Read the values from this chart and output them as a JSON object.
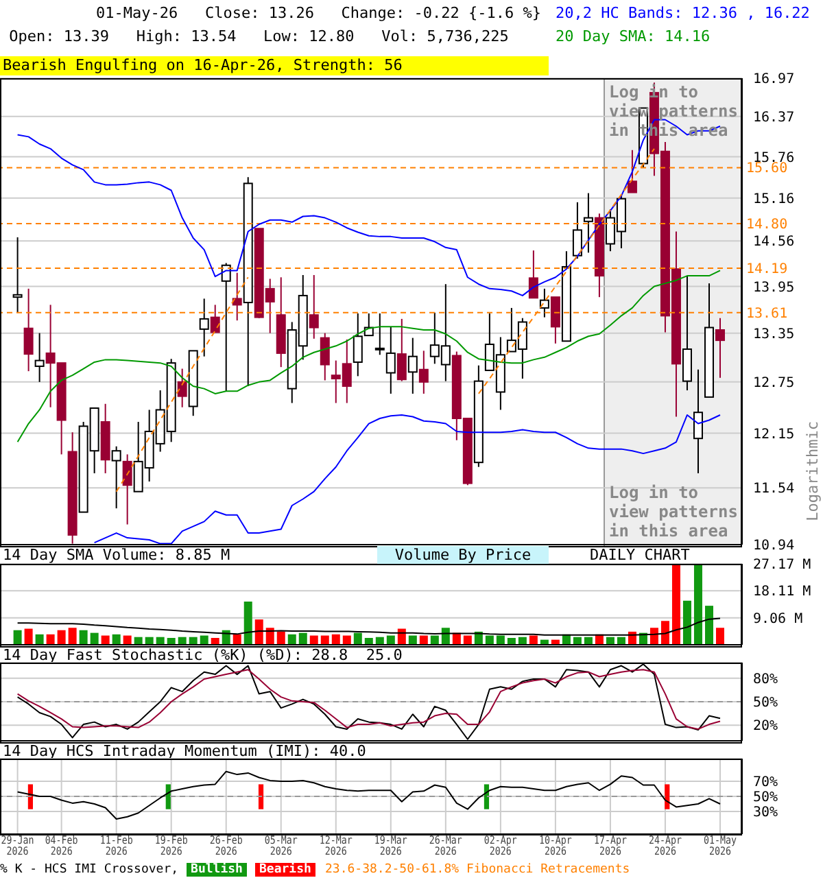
{
  "chart_data": [
    {
      "type": "candlestick",
      "title": "01-May-26   Close: 13.26   Change: -0.22 {-1.6 %}",
      "subtitle": " Open: 13.39   High: 13.54   Low: 12.80   Vol: 5,736,225",
      "ylabel": "Logarithmic",
      "log": true,
      "grid": true,
      "tick_labels": "y",
      "legend": "top right",
      "categories": [
        null,
        null,
        null,
        null,
        null,
        null,
        null,
        null,
        null,
        null,
        null,
        null,
        null,
        null,
        null,
        null,
        null,
        null,
        null,
        null,
        null,
        null,
        null,
        null,
        null,
        null,
        null,
        null,
        null,
        null,
        null,
        null,
        null,
        null,
        null,
        null,
        null,
        null,
        null,
        null,
        null,
        null,
        null,
        null,
        null,
        null,
        null,
        null,
        null,
        null,
        null,
        null,
        null,
        null,
        null,
        null,
        null,
        null,
        null,
        null,
        null,
        null,
        null,
        null,
        null
      ],
      "ohlc": [
        [
          13.81,
          14.61,
          13.61,
          13.84
        ],
        [
          13.41,
          13.92,
          12.88,
          13.09
        ],
        [
          12.94,
          13.35,
          12.75,
          13.01
        ],
        [
          13.1,
          13.71,
          12.45,
          12.98
        ],
        [
          12.98,
          12.98,
          11.91,
          12.3
        ],
        [
          11.94,
          12.16,
          10.95,
          11.04
        ],
        [
          11.28,
          12.28,
          11.28,
          12.23
        ],
        [
          11.95,
          12.44,
          11.7,
          12.44
        ],
        [
          12.28,
          12.49,
          11.7,
          11.85
        ],
        [
          11.84,
          12.0,
          11.32,
          11.95
        ],
        [
          11.83,
          11.91,
          11.15,
          11.57
        ],
        [
          11.5,
          12.28,
          11.5,
          11.83
        ],
        [
          11.76,
          12.42,
          11.61,
          12.17
        ],
        [
          12.03,
          12.65,
          11.94,
          12.42
        ],
        [
          12.17,
          13.03,
          12.05,
          12.98
        ],
        [
          12.75,
          12.91,
          12.45,
          12.58
        ],
        [
          12.46,
          13.13,
          12.35,
          13.13
        ],
        [
          13.4,
          13.79,
          13.06,
          13.53
        ],
        [
          13.55,
          13.71,
          13.36,
          13.36
        ],
        [
          14.02,
          14.26,
          12.64,
          14.23
        ],
        [
          13.79,
          14.13,
          13.51,
          13.71
        ],
        [
          13.74,
          15.46,
          12.7,
          15.37
        ],
        [
          14.73,
          14.73,
          13.54,
          13.55
        ],
        [
          13.92,
          14.05,
          13.35,
          13.75
        ],
        [
          13.58,
          14.07,
          12.93,
          13.1
        ],
        [
          12.67,
          13.49,
          12.5,
          13.39
        ],
        [
          13.19,
          14.1,
          13.02,
          13.83
        ],
        [
          13.58,
          14.1,
          13.28,
          13.42
        ],
        [
          13.29,
          13.35,
          12.77,
          12.96
        ],
        [
          12.83,
          13.01,
          12.5,
          12.79
        ],
        [
          12.97,
          13.27,
          12.5,
          12.7
        ],
        [
          12.99,
          13.6,
          12.82,
          13.31
        ],
        [
          13.32,
          13.6,
          13.32,
          13.42
        ],
        [
          13.15,
          13.6,
          13.08,
          13.16
        ],
        [
          12.86,
          13.43,
          12.61,
          13.1
        ],
        [
          13.09,
          13.53,
          12.76,
          12.78
        ],
        [
          12.87,
          13.29,
          12.61,
          13.06
        ],
        [
          12.9,
          13.13,
          12.61,
          12.75
        ],
        [
          13.06,
          13.61,
          12.97,
          13.2
        ],
        [
          12.96,
          13.98,
          12.76,
          13.19
        ],
        [
          13.07,
          13.12,
          12.07,
          12.32
        ],
        [
          12.32,
          12.32,
          11.57,
          11.59
        ],
        [
          11.82,
          12.95,
          11.77,
          12.76
        ],
        [
          12.89,
          13.6,
          12.89,
          13.21
        ],
        [
          12.63,
          13.3,
          12.42,
          13.08
        ],
        [
          13.12,
          13.67,
          13.12,
          13.26
        ],
        [
          13.15,
          13.54,
          12.79,
          13.49
        ],
        [
          14.06,
          14.43,
          13.8,
          13.8
        ],
        [
          13.67,
          13.92,
          13.55,
          13.77
        ],
        [
          13.81,
          13.81,
          13.22,
          13.43
        ],
        [
          13.25,
          14.42,
          13.25,
          14.21
        ],
        [
          14.36,
          15.1,
          14.32,
          14.71
        ],
        [
          14.83,
          15.23,
          14.4,
          14.88
        ],
        [
          14.88,
          14.94,
          13.81,
          14.09
        ],
        [
          14.52,
          15.0,
          14.42,
          14.88
        ],
        [
          14.69,
          15.19,
          14.46,
          15.15
        ],
        [
          15.4,
          15.86,
          15.24,
          15.24
        ],
        [
          15.66,
          16.5,
          15.6,
          16.5
        ],
        [
          16.74,
          16.9,
          15.48,
          15.81
        ],
        [
          15.84,
          15.98,
          13.36,
          13.57
        ],
        [
          14.18,
          14.69,
          12.34,
          12.97
        ],
        [
          12.76,
          14.09,
          12.65,
          13.15
        ],
        [
          12.09,
          12.9,
          11.7,
          12.39
        ],
        [
          12.57,
          13.99,
          12.57,
          13.42
        ],
        [
          13.39,
          13.54,
          12.8,
          13.26
        ]
      ],
      "colors": [
        "#ffffff",
        "#990033",
        "#ffffff",
        "#990033",
        "#990033",
        "#990033",
        "#ffffff",
        "#ffffff",
        "#990033",
        "#ffffff",
        "#990033",
        "#ffffff",
        "#ffffff",
        "#ffffff",
        "#ffffff",
        "#990033",
        "#ffffff",
        "#ffffff",
        "#990033",
        "#ffffff",
        "#990033",
        "#ffffff",
        "#990033",
        "#990033",
        "#990033",
        "#ffffff",
        "#ffffff",
        "#990033",
        "#990033",
        "#990033",
        "#990033",
        "#ffffff",
        "#ffffff",
        "#ffffff",
        "#ffffff",
        "#990033",
        "#ffffff",
        "#990033",
        "#ffffff",
        "#ffffff",
        "#990033",
        "#990033",
        "#ffffff",
        "#ffffff",
        "#ffffff",
        "#ffffff",
        "#ffffff",
        "#990033",
        "#ffffff",
        "#990033",
        "#ffffff",
        "#ffffff",
        "#ffffff",
        "#990033",
        "#ffffff",
        "#ffffff",
        "#990033",
        "#ffffff",
        "#990033",
        "#990033",
        "#990033",
        "#ffffff",
        "#ffffff",
        "#ffffff",
        "#990033"
      ],
      "series": [
        {
          "type": "line",
          "name": "20,2 HC Bands: 12.36 , 16.22",
          "color": "#0000ff",
          "values": [
            16.09,
            16.06,
            15.95,
            15.88,
            15.74,
            15.64,
            15.57,
            15.39,
            15.35,
            15.35,
            15.36,
            15.38,
            15.39,
            15.35,
            15.27,
            14.88,
            14.6,
            14.44,
            14.08,
            14.16,
            14.16,
            14.69,
            14.79,
            14.85,
            14.85,
            14.82,
            14.9,
            14.91,
            14.88,
            14.82,
            14.74,
            14.68,
            14.63,
            14.62,
            14.62,
            14.6,
            14.6,
            14.6,
            14.55,
            14.47,
            14.44,
            14.07,
            13.98,
            13.92,
            13.91,
            13.89,
            13.83,
            13.94,
            14.01,
            14.07,
            14.18,
            14.35,
            14.57,
            14.79,
            14.98,
            15.19,
            15.54,
            16.01,
            16.32,
            16.32,
            16.22,
            16.09,
            16.15,
            16.15,
            16.22
          ]
        },
        {
          "type": "line",
          "color": "#0000ff",
          "values": [
            null,
            null,
            null,
            null,
            null,
            null,
            null,
            10.96,
            11.01,
            11.06,
            11.01,
            11.0,
            10.99,
            10.95,
            10.95,
            11.08,
            11.13,
            11.18,
            11.29,
            11.25,
            11.25,
            11.06,
            11.06,
            11.08,
            11.1,
            11.35,
            11.42,
            11.5,
            11.64,
            11.77,
            11.95,
            12.1,
            12.26,
            12.32,
            12.35,
            12.36,
            12.34,
            12.29,
            12.28,
            12.26,
            12.17,
            12.16,
            12.16,
            12.16,
            12.16,
            12.17,
            12.19,
            12.17,
            12.16,
            12.16,
            12.1,
            12.03,
            11.98,
            11.97,
            11.97,
            11.97,
            11.95,
            11.92,
            11.95,
            11.98,
            12.05,
            12.36,
            12.26,
            12.3,
            12.36
          ]
        },
        {
          "type": "line",
          "name": "20 Day SMA: 14.16",
          "color": "#009900",
          "values": [
            12.05,
            12.26,
            12.42,
            12.64,
            12.77,
            12.83,
            12.91,
            12.99,
            13.02,
            13.02,
            13.01,
            13.0,
            12.99,
            12.98,
            12.94,
            12.8,
            12.7,
            12.67,
            12.61,
            12.64,
            12.64,
            12.71,
            12.75,
            12.77,
            12.86,
            12.94,
            13.05,
            13.11,
            13.15,
            13.19,
            13.25,
            13.34,
            13.41,
            13.43,
            13.43,
            13.43,
            13.41,
            13.39,
            13.39,
            13.34,
            13.25,
            13.11,
            13.03,
            13.01,
            12.99,
            12.98,
            12.98,
            13.02,
            13.05,
            13.11,
            13.17,
            13.25,
            13.31,
            13.34,
            13.45,
            13.57,
            13.67,
            13.83,
            13.95,
            13.99,
            14.03,
            14.09,
            14.09,
            14.09,
            14.16
          ]
        },
        {
          "type": "line",
          "color": "#ff8000",
          "line_style": "dashed",
          "values": [
            null,
            null,
            null,
            null,
            null,
            null,
            null,
            null,
            null,
            11.5,
            11.69,
            11.89,
            12.1,
            12.3,
            12.51,
            12.72,
            12.94,
            13.16,
            13.38,
            13.61,
            13.84,
            14.07,
            null,
            null,
            null,
            null,
            null,
            null,
            null,
            null,
            null,
            null,
            null,
            null,
            null,
            null,
            null,
            null,
            null,
            null,
            null,
            null,
            null,
            null,
            null,
            null,
            null,
            null,
            null,
            null,
            null,
            null,
            null,
            null,
            null,
            null,
            null,
            null,
            null,
            null,
            null,
            null,
            null,
            null,
            null
          ]
        },
        {
          "type": "line",
          "color": "#ff8000",
          "line_style": "dashed",
          "values": [
            null,
            null,
            null,
            null,
            null,
            null,
            null,
            null,
            null,
            null,
            null,
            null,
            null,
            null,
            null,
            null,
            null,
            null,
            null,
            null,
            null,
            null,
            null,
            null,
            null,
            null,
            null,
            null,
            null,
            null,
            null,
            null,
            null,
            null,
            null,
            null,
            null,
            null,
            null,
            null,
            null,
            null,
            12.61,
            12.79,
            12.98,
            13.17,
            13.36,
            13.55,
            13.75,
            13.95,
            14.15,
            14.36,
            14.56,
            14.78,
            14.99,
            15.21,
            15.43,
            15.65,
            15.88,
            null,
            null,
            null,
            null,
            null,
            null
          ]
        }
      ],
      "ylim": [
        10.94,
        16.97
      ],
      "yticks": [
        10.94,
        11.54,
        12.15,
        12.75,
        13.35,
        13.95,
        14.56,
        15.16,
        15.76,
        16.37,
        16.97
      ],
      "ref_lines": [
        {
          "axis": "y",
          "value": 15.6,
          "label": "15.60",
          "color": "#ff8000",
          "line_style": "dashed"
        },
        {
          "axis": "y",
          "value": 14.8,
          "label": "14.80",
          "color": "#ff8000",
          "line_style": "dashed"
        },
        {
          "axis": "y",
          "value": 14.19,
          "label": "14.19",
          "color": "#ff8000",
          "line_style": "dashed"
        },
        {
          "axis": "y",
          "value": 13.61,
          "label": "13.61",
          "color": "#ff8000",
          "line_style": "dashed"
        }
      ],
      "annotations": [
        "Bearish Engulfing on 16-Apr-26, Strength: 56",
        "Log in to view patterns in this area",
        "Log in to view patterns in this area",
        "23.6-38.2-50-61.8% Fibonacci Retracements"
      ]
    },
    {
      "type": "bar",
      "title": "14 Day SMA Volume: 8.85 M",
      "grid": true,
      "tick_labels": "y",
      "categories": [
        null,
        null,
        null,
        null,
        null,
        null,
        null,
        null,
        null,
        null,
        null,
        null,
        null,
        null,
        null,
        null,
        null,
        null,
        null,
        null,
        null,
        null,
        null,
        null,
        null,
        null,
        null,
        null,
        null,
        null,
        null,
        null,
        null,
        null,
        null,
        null,
        null,
        null,
        null,
        null,
        null,
        null,
        null,
        null,
        null,
        null,
        null,
        null,
        null,
        null,
        null,
        null,
        null,
        null,
        null,
        null,
        null,
        null,
        null,
        null,
        null,
        null,
        null,
        null,
        null
      ],
      "series": [
        {
          "type": "bar",
          "colors": [
            "#119911",
            "#ff0000",
            "#119911",
            "#ff0000",
            "#ff0000",
            "#ff0000",
            "#119911",
            "#119911",
            "#ff0000",
            "#119911",
            "#ff0000",
            "#119911",
            "#119911",
            "#119911",
            "#119911",
            "#119911",
            "#119911",
            "#119911",
            "#ff0000",
            "#119911",
            "#ff0000",
            "#119911",
            "#ff0000",
            "#ff0000",
            "#ff0000",
            "#119911",
            "#119911",
            "#ff0000",
            "#ff0000",
            "#ff0000",
            "#ff0000",
            "#119911",
            "#119911",
            "#119911",
            "#119911",
            "#ff0000",
            "#119911",
            "#ff0000",
            "#119911",
            "#119911",
            "#ff0000",
            "#ff0000",
            "#119911",
            "#119911",
            "#119911",
            "#119911",
            "#119911",
            "#ff0000",
            "#119911",
            "#ff0000",
            "#119911",
            "#119911",
            "#119911",
            "#ff0000",
            "#119911",
            "#119911",
            "#ff0000",
            "#119911",
            "#ff0000",
            "#ff0000",
            "#ff0000",
            "#119911",
            "#119911",
            "#119911",
            "#ff0000"
          ],
          "values": [
            4.9,
            5.4,
            3.5,
            3.5,
            4.9,
            5.7,
            4.9,
            4.0,
            3.1,
            3.5,
            3.1,
            2.6,
            2.6,
            2.6,
            2.3,
            2.6,
            2.6,
            3.1,
            2.3,
            4.9,
            3.5,
            14.5,
            8.5,
            5.7,
            4.4,
            3.5,
            4.0,
            3.1,
            3.1,
            3.5,
            3.1,
            4.0,
            2.3,
            2.6,
            3.1,
            5.4,
            3.1,
            3.1,
            3.1,
            5.7,
            4.0,
            3.1,
            4.4,
            3.1,
            3.1,
            2.3,
            2.6,
            3.1,
            1.7,
            1.7,
            3.5,
            2.6,
            2.6,
            3.5,
            2.6,
            2.6,
            4.4,
            4.0,
            5.7,
            8.0,
            27.0,
            14.8,
            27.0,
            13.1,
            5.7
          ]
        },
        {
          "type": "line",
          "color": "#000000",
          "values": [
            7.3,
            7.3,
            7.2,
            7.1,
            7.1,
            7.1,
            6.9,
            6.6,
            6.4,
            6.1,
            5.8,
            5.6,
            5.3,
            5.1,
            4.9,
            4.6,
            4.4,
            4.2,
            4.0,
            3.8,
            3.6,
            4.2,
            4.6,
            4.6,
            4.7,
            4.6,
            4.6,
            4.6,
            4.5,
            4.5,
            4.5,
            4.4,
            4.3,
            4.2,
            4.0,
            4.0,
            4.0,
            3.8,
            3.7,
            3.8,
            3.8,
            3.8,
            3.8,
            3.6,
            3.5,
            3.5,
            3.5,
            3.5,
            3.3,
            3.3,
            3.3,
            3.3,
            3.3,
            3.3,
            3.3,
            3.3,
            3.3,
            3.4,
            3.5,
            3.8,
            5.0,
            5.9,
            7.5,
            8.6,
            8.85
          ]
        }
      ],
      "ylim": [
        0,
        27.17
      ],
      "yticks": [
        {
          "value": 9.06,
          "label": "9.06 M"
        },
        {
          "value": 18.11,
          "label": "18.11 M"
        },
        {
          "value": 27.17,
          "label": "27.17 M"
        }
      ],
      "annotations": [
        "Volume By Price",
        "DAILY CHART"
      ]
    },
    {
      "type": "line",
      "title": "14 Day Fast Stochastic (%K) (%D): 28.8  25.0",
      "grid": true,
      "tick_labels": "y",
      "categories": [
        null,
        null,
        null,
        null,
        null,
        null,
        null,
        null,
        null,
        null,
        null,
        null,
        null,
        null,
        null,
        null,
        null,
        null,
        null,
        null,
        null,
        null,
        null,
        null,
        null,
        null,
        null,
        null,
        null,
        null,
        null,
        null,
        null,
        null,
        null,
        null,
        null,
        null,
        null,
        null,
        null,
        null,
        null,
        null,
        null,
        null,
        null,
        null,
        null,
        null,
        null,
        null,
        null,
        null,
        null,
        null,
        null,
        null,
        null,
        null,
        null,
        null,
        null,
        null,
        null
      ],
      "series": [
        {
          "color": "#000000",
          "values": [
            56,
            47,
            36,
            31,
            21,
            4,
            21,
            24,
            18,
            21,
            15,
            24,
            37,
            50,
            68,
            63,
            77,
            88,
            85,
            96,
            85,
            96,
            60,
            63,
            42,
            47,
            53,
            47,
            34,
            18,
            15,
            28,
            24,
            23,
            21,
            15,
            34,
            18,
            44,
            39,
            21,
            2,
            21,
            66,
            69,
            66,
            76,
            79,
            79,
            69,
            91,
            90,
            88,
            69,
            91,
            96,
            88,
            98,
            85,
            21,
            17,
            18,
            14,
            32,
            28.8
          ]
        },
        {
          "color": "#990033",
          "values": [
            60,
            51,
            44,
            36,
            28,
            18,
            17,
            18,
            19,
            19,
            18,
            17,
            24,
            36,
            50,
            60,
            69,
            79,
            82,
            85,
            88,
            91,
            79,
            66,
            56,
            51,
            50,
            49,
            39,
            28,
            17,
            21,
            21,
            23,
            19,
            21,
            23,
            24,
            32,
            35,
            34,
            21,
            21,
            37,
            63,
            69,
            74,
            77,
            79,
            74,
            82,
            87,
            88,
            82,
            85,
            88,
            90,
            91,
            88,
            60,
            28,
            18,
            15,
            21,
            25.0
          ]
        }
      ],
      "ylim": [
        0,
        100
      ],
      "yticks": [
        {
          "value": 20,
          "label": "20%"
        },
        {
          "value": 50,
          "label": "50%"
        },
        {
          "value": 80,
          "label": "80%"
        }
      ],
      "ref_lines": [
        {
          "axis": "y",
          "value": 50,
          "color": "#999999",
          "line_style": "dashed"
        }
      ]
    },
    {
      "type": "line",
      "title": "14 Day HCS Intraday Momentum (IMI): 40.0",
      "grid": true,
      "legend": "bottom left",
      "legend_title": "% K - HCS IMI Crossover,",
      "categories": [
        "29-Jan 2026",
        null,
        null,
        null,
        "04-Feb 2026",
        null,
        null,
        null,
        null,
        "11-Feb 2026",
        null,
        null,
        null,
        null,
        "19-Feb 2026",
        null,
        null,
        null,
        null,
        "26-Feb 2026",
        null,
        null,
        null,
        null,
        "05-Mar 2026",
        null,
        null,
        null,
        null,
        "12-Mar 2026",
        null,
        null,
        null,
        null,
        "19-Mar 2026",
        null,
        null,
        null,
        null,
        "26-Mar 2026",
        null,
        null,
        null,
        null,
        "02-Apr 2026",
        null,
        null,
        null,
        null,
        "10-Apr 2026",
        null,
        null,
        null,
        null,
        "17-Apr 2026",
        null,
        null,
        null,
        null,
        "24-Apr 2026",
        null,
        null,
        null,
        null,
        "01-May 2026"
      ],
      "series": [
        {
          "type": "bar",
          "name": "Bullish",
          "color": "#119911",
          "base": [
            null,
            null,
            null,
            null,
            null,
            null,
            null,
            null,
            null,
            null,
            null,
            null,
            null,
            null,
            33,
            null,
            null,
            null,
            null,
            null,
            null,
            null,
            null,
            null,
            null,
            null,
            null,
            null,
            null,
            null,
            null,
            null,
            null,
            null,
            null,
            null,
            null,
            null,
            null,
            null,
            null,
            null,
            null,
            33,
            null,
            null,
            null,
            null,
            null,
            null,
            null,
            null,
            null,
            null,
            null,
            null,
            null,
            null,
            null,
            null,
            null,
            null,
            null,
            null,
            null
          ],
          "values": [
            null,
            null,
            null,
            null,
            null,
            null,
            null,
            null,
            null,
            null,
            null,
            null,
            null,
            null,
            33,
            null,
            null,
            null,
            null,
            null,
            null,
            null,
            null,
            null,
            null,
            null,
            null,
            null,
            null,
            null,
            null,
            null,
            null,
            null,
            null,
            null,
            null,
            null,
            null,
            null,
            null,
            null,
            null,
            33,
            null,
            null,
            null,
            null,
            null,
            null,
            null,
            null,
            null,
            null,
            null,
            null,
            null,
            null,
            null,
            null,
            null,
            null,
            null,
            null,
            null
          ]
        },
        {
          "type": "bar",
          "name": "Bearish",
          "color": "#ff0000",
          "base": [
            null,
            33,
            null,
            null,
            null,
            null,
            null,
            null,
            null,
            null,
            null,
            null,
            null,
            null,
            null,
            null,
            null,
            null,
            null,
            null,
            null,
            null,
            33,
            null,
            null,
            null,
            null,
            null,
            null,
            null,
            null,
            null,
            null,
            null,
            null,
            null,
            null,
            null,
            null,
            null,
            null,
            null,
            null,
            null,
            null,
            null,
            null,
            null,
            null,
            null,
            null,
            null,
            null,
            null,
            null,
            null,
            null,
            null,
            null,
            33,
            null,
            null,
            null,
            null,
            null
          ],
          "values": [
            null,
            33,
            null,
            null,
            null,
            null,
            null,
            null,
            null,
            null,
            null,
            null,
            null,
            null,
            null,
            null,
            null,
            null,
            null,
            null,
            null,
            null,
            33,
            null,
            null,
            null,
            null,
            null,
            null,
            null,
            null,
            null,
            null,
            null,
            null,
            null,
            null,
            null,
            null,
            null,
            null,
            null,
            null,
            null,
            null,
            null,
            null,
            null,
            null,
            null,
            null,
            null,
            null,
            null,
            null,
            null,
            null,
            null,
            null,
            33,
            null,
            null,
            null,
            null,
            null
          ]
        },
        {
          "type": "line",
          "color": "#000000",
          "values": [
            56,
            53,
            50,
            50,
            45,
            41,
            43,
            40,
            35,
            20,
            23,
            28,
            38,
            48,
            57,
            60,
            63,
            65,
            66,
            83,
            79,
            81,
            75,
            71,
            70,
            70,
            71,
            68,
            63,
            60,
            58,
            57,
            58,
            58,
            58,
            43,
            56,
            57,
            65,
            62,
            41,
            33,
            48,
            58,
            63,
            62,
            62,
            60,
            58,
            58,
            63,
            66,
            68,
            58,
            66,
            77,
            75,
            65,
            65,
            45,
            36,
            38,
            40,
            47,
            40.0
          ]
        }
      ],
      "ylim": [
        0,
        100
      ],
      "yticks": [
        {
          "value": 30,
          "label": "30%"
        },
        {
          "value": 50,
          "label": "50%"
        },
        {
          "value": 70,
          "label": "70%"
        }
      ],
      "ref_lines": [
        {
          "axis": "y",
          "value": 50,
          "color": "#999999",
          "line_style": "dashed"
        }
      ]
    }
  ]
}
